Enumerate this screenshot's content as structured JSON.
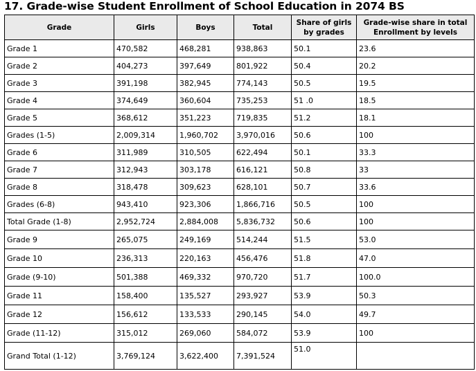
{
  "title": "17. Grade-wise Student Enrollment of School Education in 2074 BS",
  "headers": {
    "grade": "Grade",
    "girls": "Girls",
    "boys": "Boys",
    "total": "Total",
    "share_girls": "Share of girls by grades",
    "share_total": "Grade-wise share in total Enrollment by levels"
  },
  "rows": [
    {
      "grade": "Grade 1",
      "girls": "470,582",
      "boys": "468,281",
      "total": "938,863",
      "share_girls": "50.1",
      "share_total": "23.6"
    },
    {
      "grade": "Grade 2",
      "girls": "404,273",
      "boys": "397,649",
      "total": "801,922",
      "share_girls": "50.4",
      "share_total": "20.2"
    },
    {
      "grade": "Grade 3",
      "girls": "391,198",
      "boys": "382,945",
      "total": "774,143",
      "share_girls": "50.5",
      "share_total": "19.5"
    },
    {
      "grade": "Grade 4",
      "girls": "374,649",
      "boys": "360,604",
      "total": "735,253",
      "share_girls": "51 .0",
      "share_total": "18.5"
    },
    {
      "grade": "Grade 5",
      "girls": "368,612",
      "boys": "351,223",
      "total": "719,835",
      "share_girls": "51.2",
      "share_total": "18.1"
    },
    {
      "grade": "Grades (1-5)",
      "girls": "2,009,314",
      "boys": "1,960,702",
      "total": "3,970,016",
      "share_girls": "50.6",
      "share_total": "100"
    },
    {
      "grade": "Grade 6",
      "girls": "311,989",
      "boys": "310,505",
      "total": "622,494",
      "share_girls": "50.1",
      "share_total": "33.3"
    },
    {
      "grade": "Grade 7",
      "girls": "312,943",
      "boys": "303,178",
      "total": "616,121",
      "share_girls": "50.8",
      "share_total": "33"
    },
    {
      "grade": "Grade 8",
      "girls": "318,478",
      "boys": "309,623",
      "total": "628,101",
      "share_girls": "50.7",
      "share_total": "33.6"
    },
    {
      "grade": "Grades (6-8)",
      "girls": "943,410",
      "boys": "923,306",
      "total": "1,866,716",
      "share_girls": "50.5",
      "share_total": "100"
    },
    {
      "grade": "Total Grade (1-8)",
      "girls": "2,952,724",
      "boys": "2,884,008",
      "total": "5,836,732",
      "share_girls": "50.6",
      "share_total": "100"
    },
    {
      "grade": "Grade 9",
      "girls": "265,075",
      "boys": "249,169",
      "total": "514,244",
      "share_girls": "51.5",
      "share_total": "53.0"
    },
    {
      "grade": "Grade 10",
      "girls": "236,313",
      "boys": "220,163",
      "total": "456,476",
      "share_girls": "51.8",
      "share_total": "47.0"
    },
    {
      "grade": "Grade (9-10)",
      "girls": "501,388",
      "boys": "469,332",
      "total": "970,720",
      "share_girls": "51.7",
      "share_total": "100.0"
    },
    {
      "grade": "Grade 11",
      "girls": "158,400",
      "boys": "135,527",
      "total": "293,927",
      "share_girls": "53.9",
      "share_total": "50.3"
    },
    {
      "grade": "Grade 12",
      "girls": "156,612",
      "boys": "133,533",
      "total": "290,145",
      "share_girls": "54.0",
      "share_total": "49.7"
    },
    {
      "grade": "Grade (11-12)",
      "girls": "315,012",
      "boys": "269,060",
      "total": "584,072",
      "share_girls": "53.9",
      "share_total": "100"
    },
    {
      "grade": "Grand Total (1-12)",
      "girls": "3,769,124",
      "boys": "3,622,400",
      "total": "7,391,524",
      "share_girls": "51.0",
      "share_total": ""
    }
  ]
}
